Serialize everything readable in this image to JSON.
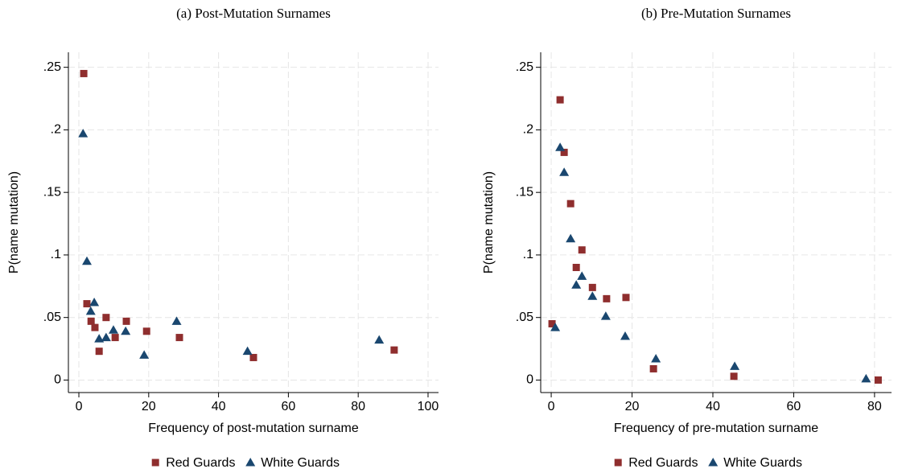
{
  "chart_data": [
    {
      "type": "scatter",
      "title": "(a) Post-Mutation Surnames",
      "x_label": "Frequency of post-mutation surname",
      "y_label": "P(name mutation)",
      "xlim": [
        -3,
        103
      ],
      "ylim": [
        -0.01,
        0.262
      ],
      "xticks": [
        0,
        20,
        40,
        60,
        80,
        100
      ],
      "yticks": [
        0,
        {
          "value": 0.05,
          "label": ".05"
        },
        {
          "value": 0.1,
          "label": ".1"
        },
        {
          "value": 0.15,
          "label": ".15"
        },
        {
          "value": 0.2,
          "label": ".2"
        },
        {
          "value": 0.25,
          "label": ".25"
        }
      ],
      "grid": true,
      "series": [
        {
          "name": "Red Guards",
          "color": "#8f2e2e",
          "marker": "square",
          "x": [
            1.4,
            2.3,
            3.5,
            4.6,
            5.8,
            7.8,
            10.4,
            13.6,
            19.4,
            28.8,
            50,
            90.3
          ],
          "values": [
            0.245,
            0.061,
            0.047,
            0.042,
            0.023,
            0.05,
            0.034,
            0.047,
            0.039,
            0.034,
            0.018,
            0.024
          ]
        },
        {
          "name": "White Guards",
          "color": "#1a476f",
          "marker": "triangle",
          "x": [
            1.2,
            2.3,
            3.4,
            4.4,
            5.8,
            7.8,
            9.9,
            13.4,
            18.7,
            28,
            48.3,
            86
          ],
          "values": [
            0.197,
            0.095,
            0.055,
            0.062,
            0.033,
            0.034,
            0.04,
            0.039,
            0.02,
            0.047,
            0.023,
            0.032
          ]
        }
      ]
    },
    {
      "type": "scatter",
      "title": "(b) Pre-Mutation Surnames",
      "x_label": "Frequency of pre-mutation surname",
      "y_label": "P(name mutation)",
      "xlim": [
        -2.6,
        84.2
      ],
      "ylim": [
        -0.01,
        0.262
      ],
      "xticks": [
        0,
        20,
        40,
        60,
        80
      ],
      "yticks": [
        0,
        {
          "value": 0.05,
          "label": ".05"
        },
        {
          "value": 0.1,
          "label": ".1"
        },
        {
          "value": 0.15,
          "label": ".15"
        },
        {
          "value": 0.2,
          "label": ".2"
        },
        {
          "value": 0.25,
          "label": ".25"
        }
      ],
      "grid": true,
      "series": [
        {
          "name": "Red Guards",
          "color": "#8f2e2e",
          "marker": "square",
          "x": [
            0.2,
            2.2,
            3.2,
            4.8,
            6.2,
            7.6,
            10.2,
            13.7,
            18.5,
            25.3,
            45.2,
            80.9
          ],
          "values": [
            0.045,
            0.224,
            0.182,
            0.141,
            0.09,
            0.104,
            0.074,
            0.065,
            0.066,
            0.009,
            0.003,
            0
          ]
        },
        {
          "name": "White Guards",
          "color": "#1a476f",
          "marker": "triangle",
          "x": [
            1,
            2.2,
            3.2,
            4.8,
            6.2,
            7.6,
            10.2,
            13.5,
            18.3,
            25.9,
            45.4,
            77.9
          ],
          "values": [
            0.042,
            0.186,
            0.166,
            0.113,
            0.076,
            0.083,
            0.067,
            0.051,
            0.035,
            0.017,
            0.011,
            0.001
          ]
        }
      ]
    }
  ]
}
